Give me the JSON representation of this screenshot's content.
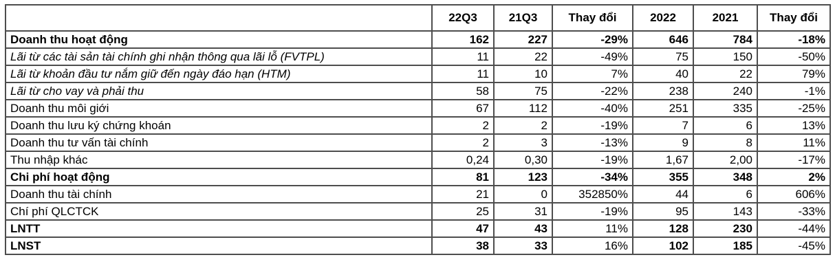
{
  "chart_data": {
    "type": "table",
    "title": "",
    "corner_label": "",
    "columns": [
      "22Q3",
      "21Q3",
      "Thay đổi",
      "2022",
      "2021",
      "Thay đổi"
    ],
    "rows": [
      {
        "label": "Doanh thu hoạt động",
        "label_style": "bold",
        "values": [
          "162",
          "227",
          "-29%",
          "646",
          "784",
          "-18%"
        ],
        "value_styles": [
          "bold",
          "bold",
          "bold",
          "bold",
          "bold",
          "bold"
        ]
      },
      {
        "label": "Lãi từ các tài sản tài chính ghi nhận thông qua lãi lỗ (FVTPL)",
        "label_style": "italic",
        "values": [
          "11",
          "22",
          "-49%",
          "75",
          "150",
          "-50%"
        ],
        "value_styles": [
          "normal",
          "normal",
          "normal",
          "normal",
          "normal",
          "normal"
        ]
      },
      {
        "label": "Lãi từ khoản đầu tư nắm giữ đến ngày đáo hạn (HTM)",
        "label_style": "italic",
        "values": [
          "11",
          "10",
          "7%",
          "40",
          "22",
          "79%"
        ],
        "value_styles": [
          "normal",
          "normal",
          "normal",
          "normal",
          "normal",
          "normal"
        ]
      },
      {
        "label": "Lãi từ cho vay và phải thu",
        "label_style": "italic",
        "values": [
          "58",
          "75",
          "-22%",
          "238",
          "240",
          "-1%"
        ],
        "value_styles": [
          "normal",
          "normal",
          "normal",
          "normal",
          "normal",
          "normal"
        ]
      },
      {
        "label": "Doanh thu môi giới",
        "label_style": "normal",
        "values": [
          "67",
          "112",
          "-40%",
          "251",
          "335",
          "-25%"
        ],
        "value_styles": [
          "normal",
          "normal",
          "normal",
          "normal",
          "normal",
          "normal"
        ]
      },
      {
        "label": "Doanh thu lưu ký chứng khoán",
        "label_style": "normal",
        "values": [
          "2",
          "2",
          "-19%",
          "7",
          "6",
          "13%"
        ],
        "value_styles": [
          "normal",
          "normal",
          "normal",
          "normal",
          "normal",
          "normal"
        ]
      },
      {
        "label": "Doanh thu tư vấn tài chính",
        "label_style": "normal",
        "values": [
          "2",
          "3",
          "-13%",
          "9",
          "8",
          "11%"
        ],
        "value_styles": [
          "normal",
          "normal",
          "normal",
          "normal",
          "normal",
          "normal"
        ]
      },
      {
        "label": "Thu nhập khác",
        "label_style": "normal",
        "values": [
          "0,24",
          "0,30",
          "-19%",
          "1,67",
          "2,00",
          "-17%"
        ],
        "value_styles": [
          "normal",
          "normal",
          "normal",
          "normal",
          "normal",
          "normal"
        ]
      },
      {
        "label": "Chi phí hoạt động",
        "label_style": "bold",
        "values": [
          "81",
          "123",
          "-34%",
          "355",
          "348",
          "2%"
        ],
        "value_styles": [
          "bold",
          "bold",
          "bold",
          "bold",
          "bold",
          "bold"
        ]
      },
      {
        "label": "Doanh thu tài chính",
        "label_style": "normal",
        "values": [
          "21",
          "0",
          "352850%",
          "44",
          "6",
          "606%"
        ],
        "value_styles": [
          "normal",
          "normal",
          "normal",
          "normal",
          "normal",
          "normal"
        ]
      },
      {
        "label": "Chí phí QLCTCK",
        "label_style": "normal",
        "values": [
          "25",
          "31",
          "-19%",
          "95",
          "143",
          "-33%"
        ],
        "value_styles": [
          "normal",
          "normal",
          "normal",
          "normal",
          "normal",
          "normal"
        ]
      },
      {
        "label": "LNTT",
        "label_style": "bold",
        "values": [
          "47",
          "43",
          "11%",
          "128",
          "230",
          "-44%"
        ],
        "value_styles": [
          "bold",
          "bold",
          "normal",
          "bold",
          "bold",
          "normal"
        ]
      },
      {
        "label": "LNST",
        "label_style": "bold",
        "values": [
          "38",
          "33",
          "16%",
          "102",
          "185",
          "-45%"
        ],
        "value_styles": [
          "bold",
          "bold",
          "normal",
          "bold",
          "bold",
          "normal"
        ]
      }
    ],
    "layout": {
      "border_color": "#4d4d4d",
      "text_color": "#000000",
      "background_color": "#ffffff"
    }
  }
}
